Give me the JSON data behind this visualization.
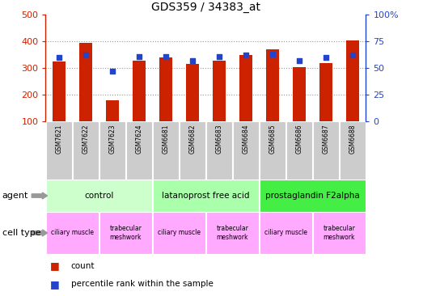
{
  "title": "GDS359 / 34383_at",
  "samples": [
    "GSM7621",
    "GSM7622",
    "GSM7623",
    "GSM7624",
    "GSM6681",
    "GSM6682",
    "GSM6683",
    "GSM6684",
    "GSM6685",
    "GSM6686",
    "GSM6687",
    "GSM6688"
  ],
  "counts": [
    325,
    395,
    178,
    328,
    340,
    315,
    328,
    348,
    370,
    305,
    320,
    403
  ],
  "percentile_ranks": [
    60,
    62,
    47,
    61,
    61,
    57,
    61,
    62,
    63,
    57,
    60,
    62
  ],
  "ylim_left": [
    100,
    500
  ],
  "ylim_right": [
    0,
    100
  ],
  "yticks_left": [
    100,
    200,
    300,
    400,
    500
  ],
  "yticks_right": [
    0,
    25,
    50,
    75,
    100
  ],
  "bar_color": "#cc2200",
  "dot_color": "#2244cc",
  "grid_color": "#999999",
  "agent_groups": [
    {
      "label": "control",
      "start": 0,
      "end": 3,
      "color": "#ccffcc"
    },
    {
      "label": "latanoprost free acid",
      "start": 4,
      "end": 7,
      "color": "#aaffaa"
    },
    {
      "label": "prostaglandin F2alpha",
      "start": 8,
      "end": 11,
      "color": "#44ee44"
    }
  ],
  "cell_type_groups": [
    {
      "label": "ciliary muscle",
      "start": 0,
      "end": 1,
      "color": "#ffaaff"
    },
    {
      "label": "trabecular\nmeshwork",
      "start": 2,
      "end": 3,
      "color": "#ffaaff"
    },
    {
      "label": "ciliary muscle",
      "start": 4,
      "end": 5,
      "color": "#ffaaff"
    },
    {
      "label": "trabecular\nmeshwork",
      "start": 6,
      "end": 7,
      "color": "#ffaaff"
    },
    {
      "label": "ciliary muscle",
      "start": 8,
      "end": 9,
      "color": "#ffaaff"
    },
    {
      "label": "trabecular\nmeshwork",
      "start": 10,
      "end": 11,
      "color": "#ffaaff"
    }
  ],
  "sample_box_color": "#cccccc",
  "legend_count_color": "#cc2200",
  "legend_pct_color": "#2244cc",
  "arrow_color": "#999999"
}
